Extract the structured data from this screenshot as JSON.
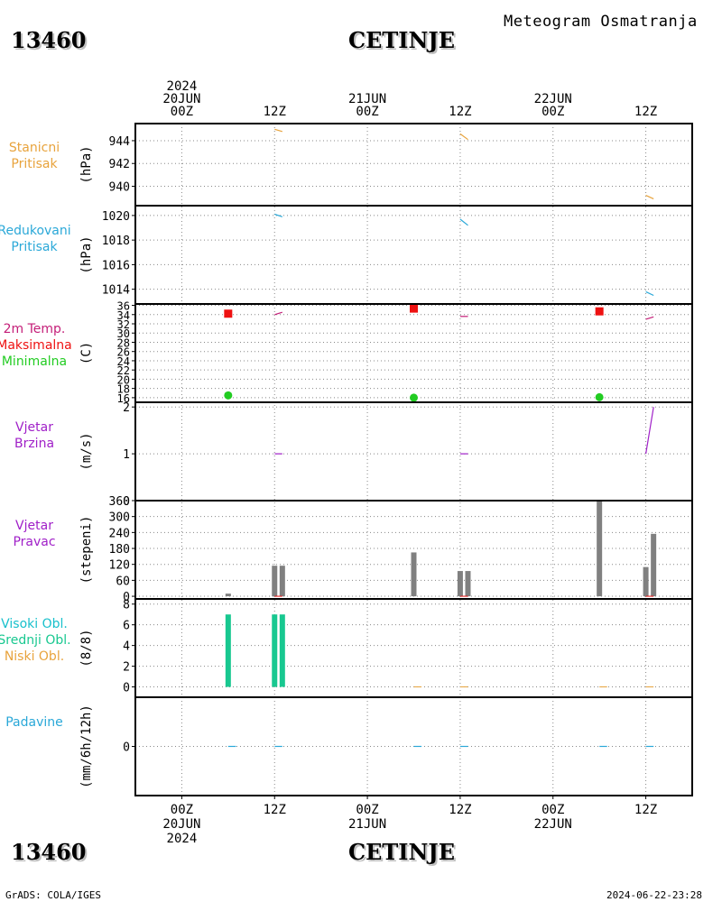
{
  "header": {
    "station_id": "13460",
    "station_name": "CETINJE",
    "title": "Meteogram Osmatranja"
  },
  "footer": {
    "station_id": "13460",
    "station_name": "CETINJE",
    "software": "GrADS: COLA/IGES",
    "generated": "2024-06-22-23:28"
  },
  "time_axis": {
    "hours_range": [
      -6,
      66
    ],
    "ticks": [
      {
        "hour": 0,
        "top": [
          "2024",
          "20JUN",
          "00Z"
        ],
        "bottom": [
          "00Z",
          "20JUN",
          "2024"
        ]
      },
      {
        "hour": 12,
        "top": [
          "12Z"
        ],
        "bottom": [
          "12Z"
        ]
      },
      {
        "hour": 24,
        "top": [
          "21JUN",
          "00Z"
        ],
        "bottom": [
          "00Z",
          "21JUN"
        ]
      },
      {
        "hour": 36,
        "top": [
          "12Z"
        ],
        "bottom": [
          "12Z"
        ]
      },
      {
        "hour": 48,
        "top": [
          "22JUN",
          "00Z"
        ],
        "bottom": [
          "00Z",
          "22JUN"
        ]
      },
      {
        "hour": 60,
        "top": [
          "12Z"
        ],
        "bottom": [
          "12Z"
        ]
      }
    ]
  },
  "colors": {
    "station_pressure": "#e8a33c",
    "reduced_pressure": "#2aa8d8",
    "temp_label": "#c41e78",
    "temp_max": "#ee1111",
    "temp_min": "#22cc22",
    "wind": "#a020c8",
    "bar_gray": "#808080",
    "cloud_high": "#18c0cc",
    "cloud_mid": "#18c890",
    "cloud_low": "#e8a33c",
    "precip": "#2aa8d8"
  },
  "chart_data": [
    {
      "type": "line",
      "panel": "station_pressure",
      "labels": [
        "Stanicni",
        "Pritisak"
      ],
      "ylabel": "(hPa)",
      "ylim": [
        938.3,
        945.5
      ],
      "yticks": [
        940,
        942,
        944
      ],
      "series": [
        {
          "color_key": "station_pressure",
          "segments": [
            [
              [
                12,
                945.0
              ],
              [
                13,
                944.8
              ]
            ],
            [
              [
                36,
                944.6
              ],
              [
                37,
                944.1
              ]
            ],
            [
              [
                60,
                939.2
              ],
              [
                61,
                938.9
              ]
            ]
          ]
        }
      ]
    },
    {
      "type": "line",
      "panel": "reduced_pressure",
      "labels": [
        "Redukovani",
        "Pritisak"
      ],
      "ylabel": "(hPa)",
      "ylim": [
        1012.8,
        1020.8
      ],
      "yticks": [
        1014,
        1016,
        1018,
        1020
      ],
      "series": [
        {
          "color_key": "reduced_pressure",
          "segments": [
            [
              [
                12,
                1020.1
              ],
              [
                13,
                1019.9
              ]
            ],
            [
              [
                36,
                1019.7
              ],
              [
                37,
                1019.2
              ]
            ],
            [
              [
                60,
                1013.8
              ],
              [
                61,
                1013.5
              ]
            ]
          ]
        }
      ]
    },
    {
      "type": "scatter",
      "panel": "temperature",
      "labels": [
        "2m Temp.",
        "Maksimalna",
        "Minimalna"
      ],
      "label_color_keys": [
        "temp_label",
        "temp_max",
        "temp_min"
      ],
      "ylabel": "(C)",
      "ylim": [
        15,
        36.3
      ],
      "yticks": [
        16,
        18,
        20,
        22,
        24,
        26,
        28,
        30,
        32,
        34,
        36
      ],
      "series": [
        {
          "name": "Maksimalna",
          "color_key": "temp_max",
          "marker": "square",
          "points": [
            [
              6,
              34.2
            ],
            [
              30,
              35.3
            ],
            [
              54,
              34.7
            ]
          ]
        },
        {
          "name": "Minimalna",
          "color_key": "temp_min",
          "marker": "circle",
          "points": [
            [
              6,
              16.5
            ],
            [
              30,
              16.0
            ],
            [
              54,
              16.1
            ]
          ]
        },
        {
          "name": "2m Temp.",
          "color_key": "temp_label",
          "marker": "line",
          "segments": [
            [
              [
                12,
                34.0
              ],
              [
                13,
                34.5
              ]
            ],
            [
              [
                36,
                33.6
              ],
              [
                37,
                33.6
              ]
            ],
            [
              [
                60,
                33.0
              ],
              [
                61,
                33.5
              ]
            ]
          ]
        }
      ]
    },
    {
      "type": "line",
      "panel": "wind_speed",
      "labels": [
        "Vjetar",
        "Brzina"
      ],
      "ylabel": "(m/s)",
      "ylim": [
        0,
        2.1
      ],
      "yticks": [
        0,
        1,
        2
      ],
      "series": [
        {
          "color_key": "wind",
          "segments": [
            [
              [
                12,
                1.0
              ],
              [
                13,
                1.0
              ]
            ],
            [
              [
                36,
                1.0
              ],
              [
                37,
                1.0
              ]
            ],
            [
              [
                60,
                1.0
              ],
              [
                61,
                2.0
              ]
            ]
          ]
        }
      ]
    },
    {
      "type": "bar",
      "panel": "wind_direction",
      "labels": [
        "Vjetar",
        "Pravac"
      ],
      "ylabel": "(stepeni)",
      "ylim": [
        -10,
        360
      ],
      "yticks": [
        0,
        60,
        120,
        180,
        240,
        300,
        360
      ],
      "bars": [
        {
          "hour": 6,
          "value": 10
        },
        {
          "hour": 12,
          "value": 115
        },
        {
          "hour": 13,
          "value": 115
        },
        {
          "hour": 30,
          "value": 165
        },
        {
          "hour": 36,
          "value": 95
        },
        {
          "hour": 37,
          "value": 95
        },
        {
          "hour": 54,
          "value": 360
        },
        {
          "hour": 60,
          "value": 110
        },
        {
          "hour": 61,
          "value": 235
        }
      ],
      "bar_color_key": "bar_gray"
    },
    {
      "type": "bar",
      "panel": "clouds",
      "labels": [
        "Visoki Obl.",
        "Srednji Obl.",
        "Niski Obl."
      ],
      "label_color_keys": [
        "cloud_high",
        "cloud_mid",
        "cloud_low"
      ],
      "ylabel": "(8/8)",
      "ylim": [
        -1,
        8.5
      ],
      "yticks": [
        0,
        2,
        4,
        6,
        8
      ],
      "bars": [
        {
          "hour": 6,
          "value": 7
        },
        {
          "hour": 12,
          "value": 7
        },
        {
          "hour": 13,
          "value": 7
        }
      ],
      "bar_color_key": "cloud_mid"
    },
    {
      "type": "line",
      "panel": "precipitation",
      "labels": [
        "Padavine"
      ],
      "ylabel": "(mm/6h/12h)",
      "ylim": [
        -5,
        5
      ],
      "yticks": [
        0
      ],
      "series": [
        {
          "color_key": "precip",
          "segments": [
            [
              [
                6,
                0
              ],
              [
                7,
                0
              ]
            ],
            [
              [
                12,
                0
              ],
              [
                13,
                0
              ]
            ],
            [
              [
                30,
                0
              ],
              [
                31,
                0
              ]
            ],
            [
              [
                36,
                0
              ],
              [
                37,
                0
              ]
            ],
            [
              [
                54,
                0
              ],
              [
                55,
                0
              ]
            ],
            [
              [
                60,
                0
              ],
              [
                61,
                0
              ]
            ]
          ]
        }
      ]
    }
  ]
}
